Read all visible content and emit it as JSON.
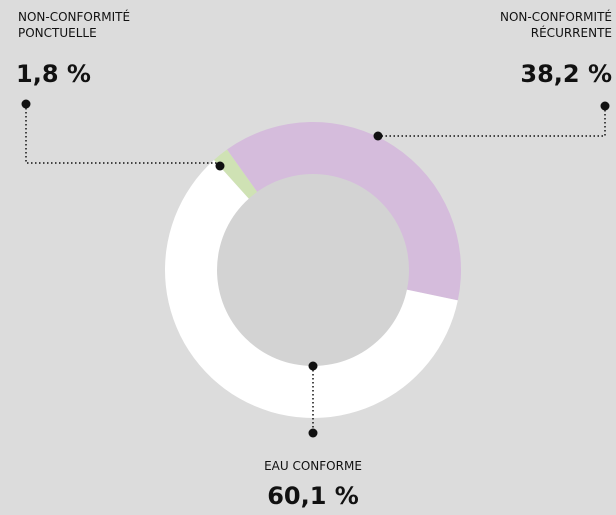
{
  "chart_data": {
    "type": "donut",
    "categories": [
      "NON-CONFORMITÉ PONCTUELLE",
      "NON-CONFORMITÉ RÉCURRENTE",
      "EAU CONFORME"
    ],
    "values": [
      1.8,
      38.2,
      60.1
    ],
    "value_labels": [
      "1,8 %",
      "38,2 %",
      "60,1 %"
    ],
    "colors": [
      "#cfe2b4",
      "#d5bcdc",
      "#ffffff"
    ]
  }
}
